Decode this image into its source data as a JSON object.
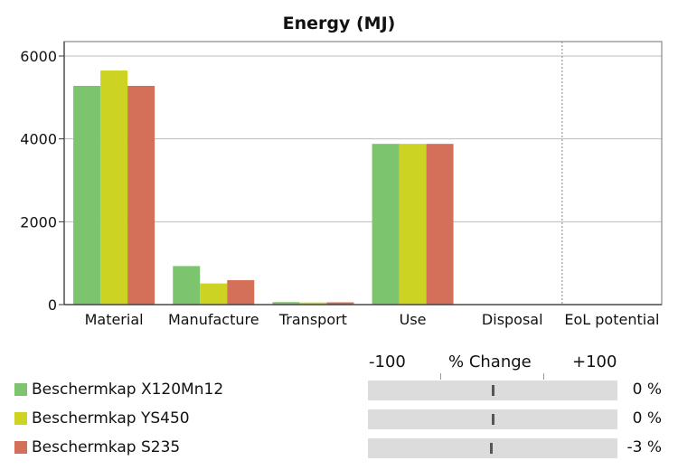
{
  "chart_data": {
    "type": "bar",
    "title": "Energy (MJ)",
    "categories": [
      "Material",
      "Manufacture",
      "Transport",
      "Use",
      "Disposal",
      "EoL potential"
    ],
    "ylim": [
      0,
      6000
    ],
    "yticks": [
      0,
      2000,
      4000,
      6000
    ],
    "grid": true,
    "series": [
      {
        "name": "Beschermkap X120Mn12",
        "color": "#7dc46e",
        "values": [
          5280,
          930,
          60,
          3880,
          0,
          0
        ]
      },
      {
        "name": "Beschermkap YS450",
        "color": "#cdd323",
        "values": [
          5650,
          510,
          50,
          3880,
          0,
          0
        ]
      },
      {
        "name": "Beschermkap S235",
        "color": "#d4705a",
        "values": [
          5280,
          590,
          55,
          3880,
          0,
          0
        ]
      }
    ]
  },
  "change_panel": {
    "label_min": "-100",
    "label_title": "% Change",
    "label_max": "+100",
    "rows": [
      {
        "name": "Beschermkap X120Mn12",
        "value": 0,
        "text": "0 %"
      },
      {
        "name": "Beschermkap YS450",
        "value": 0,
        "text": "0 %"
      },
      {
        "name": "Beschermkap S235",
        "value": -3,
        "text": "-3 %"
      }
    ]
  }
}
